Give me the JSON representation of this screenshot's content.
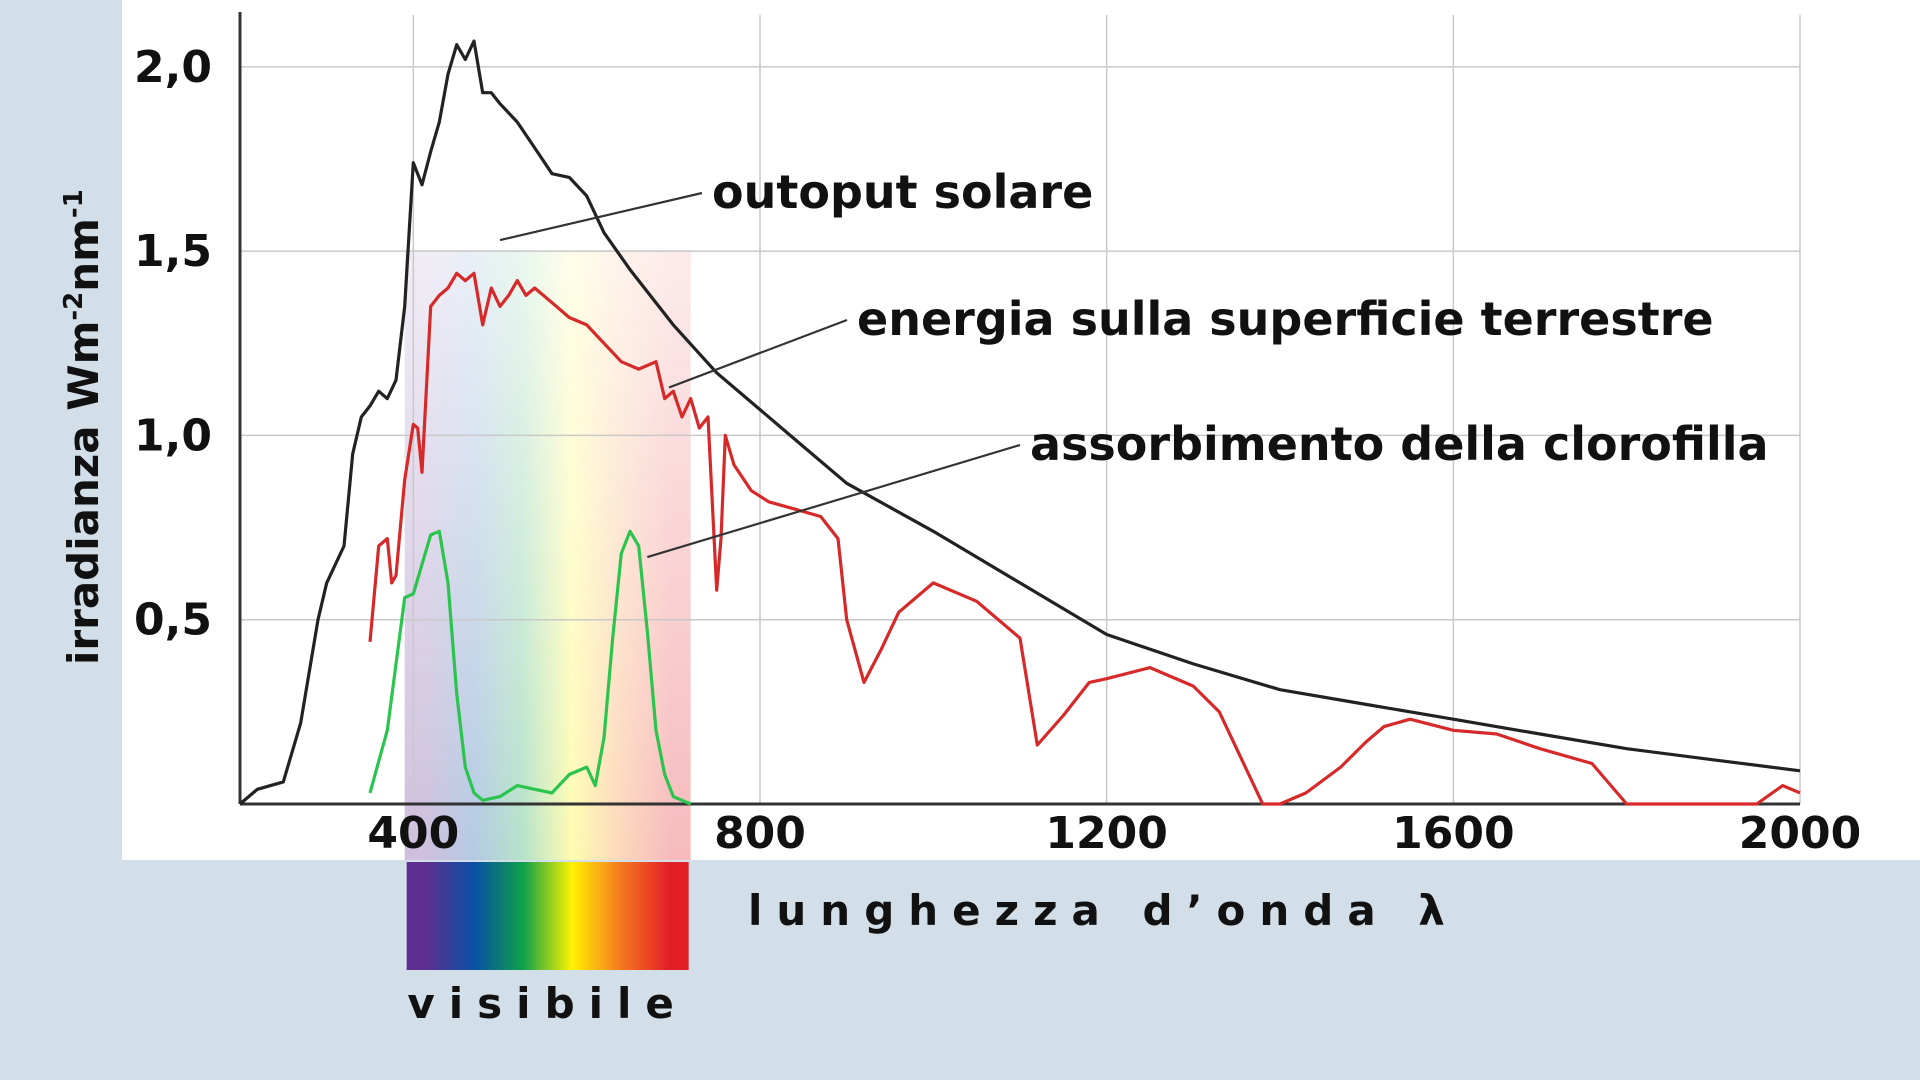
{
  "chart_data": {
    "type": "line",
    "xlabel": "lunghezza d’onda λ",
    "ylabel": "irradianza Wm-2nm-1",
    "ylabel_parts": {
      "base": "irradianza Wm",
      "sup1": "-2",
      "mid": "nm",
      "sup2": "-1"
    },
    "xlim": [
      200,
      2000
    ],
    "ylim": [
      0,
      2.1
    ],
    "x_ticks": [
      400,
      800,
      1200,
      1600,
      2000
    ],
    "y_ticks": [
      0.5,
      1.0,
      1.5,
      2.0
    ],
    "x_tick_labels": [
      "400",
      "800",
      "1200",
      "1600",
      "2000"
    ],
    "y_tick_labels": [
      "0,5",
      "1,0",
      "1,5",
      "2,0"
    ],
    "grid": true,
    "visible_band": {
      "label": "visibile",
      "range": [
        390,
        720
      ]
    },
    "spectrum_colors": [
      "#5e2f91",
      "#0751a4",
      "#0fa14a",
      "#fff200",
      "#f47a20",
      "#e31f26"
    ],
    "series": [
      {
        "name": "outoput solare",
        "color": "#222222",
        "label_at": [
          500,
          1.53
        ],
        "x": [
          200,
          220,
          250,
          270,
          290,
          300,
          320,
          330,
          340,
          350,
          360,
          370,
          380,
          390,
          400,
          410,
          420,
          430,
          440,
          450,
          460,
          470,
          480,
          490,
          500,
          520,
          540,
          560,
          580,
          600,
          620,
          650,
          700,
          750,
          800,
          850,
          900,
          1000,
          1100,
          1200,
          1300,
          1400,
          1500,
          1600,
          1700,
          1800,
          1900,
          2000
        ],
        "y": [
          0.0,
          0.04,
          0.06,
          0.22,
          0.5,
          0.6,
          0.7,
          0.95,
          1.05,
          1.08,
          1.12,
          1.1,
          1.15,
          1.35,
          1.74,
          1.68,
          1.77,
          1.85,
          1.98,
          2.06,
          2.02,
          2.07,
          1.93,
          1.93,
          1.9,
          1.85,
          1.78,
          1.71,
          1.7,
          1.65,
          1.55,
          1.45,
          1.3,
          1.17,
          1.07,
          0.97,
          0.87,
          0.74,
          0.6,
          0.46,
          0.38,
          0.31,
          0.27,
          0.23,
          0.19,
          0.15,
          0.12,
          0.09
        ]
      },
      {
        "name": "energia sulla superficie terrestre",
        "color": "#d62a2a",
        "label_at": [
          695,
          1.13
        ],
        "x": [
          350,
          360,
          370,
          375,
          380,
          390,
          400,
          405,
          410,
          420,
          430,
          440,
          450,
          460,
          470,
          480,
          490,
          500,
          510,
          520,
          530,
          540,
          560,
          580,
          600,
          620,
          640,
          660,
          680,
          690,
          700,
          710,
          720,
          730,
          740,
          750,
          755,
          760,
          770,
          790,
          810,
          840,
          870,
          890,
          900,
          920,
          940,
          960,
          1000,
          1050,
          1100,
          1120,
          1150,
          1180,
          1200,
          1250,
          1300,
          1330,
          1380,
          1400,
          1430,
          1470,
          1500,
          1520,
          1550,
          1600,
          1650,
          1700,
          1760,
          1800,
          1820,
          1850,
          1900,
          1950,
          1980,
          2000
        ],
        "y": [
          0.44,
          0.7,
          0.72,
          0.6,
          0.62,
          0.88,
          1.03,
          1.02,
          0.9,
          1.35,
          1.38,
          1.4,
          1.44,
          1.42,
          1.44,
          1.3,
          1.4,
          1.35,
          1.38,
          1.42,
          1.38,
          1.4,
          1.36,
          1.32,
          1.3,
          1.25,
          1.2,
          1.18,
          1.2,
          1.1,
          1.12,
          1.05,
          1.1,
          1.02,
          1.05,
          0.58,
          0.72,
          1.0,
          0.92,
          0.85,
          0.82,
          0.8,
          0.78,
          0.72,
          0.5,
          0.33,
          0.42,
          0.52,
          0.6,
          0.55,
          0.45,
          0.16,
          0.24,
          0.33,
          0.34,
          0.37,
          0.32,
          0.25,
          0.0,
          0.0,
          0.03,
          0.1,
          0.17,
          0.21,
          0.23,
          0.2,
          0.19,
          0.15,
          0.11,
          0.0,
          0.0,
          0.0,
          0.0,
          0.0,
          0.05,
          0.03
        ]
      },
      {
        "name": "assorbimento della clorofilla",
        "color": "#2bc44e",
        "label_at": [
          670,
          0.67
        ],
        "x": [
          350,
          370,
          390,
          400,
          410,
          420,
          430,
          440,
          450,
          460,
          470,
          480,
          500,
          520,
          540,
          560,
          580,
          600,
          610,
          620,
          630,
          640,
          650,
          660,
          670,
          680,
          690,
          700,
          710,
          720
        ],
        "y": [
          0.03,
          0.2,
          0.56,
          0.57,
          0.65,
          0.73,
          0.74,
          0.6,
          0.3,
          0.1,
          0.03,
          0.01,
          0.02,
          0.05,
          0.04,
          0.03,
          0.08,
          0.1,
          0.05,
          0.18,
          0.45,
          0.68,
          0.74,
          0.7,
          0.47,
          0.2,
          0.08,
          0.02,
          0.01,
          0.0
        ]
      }
    ]
  }
}
